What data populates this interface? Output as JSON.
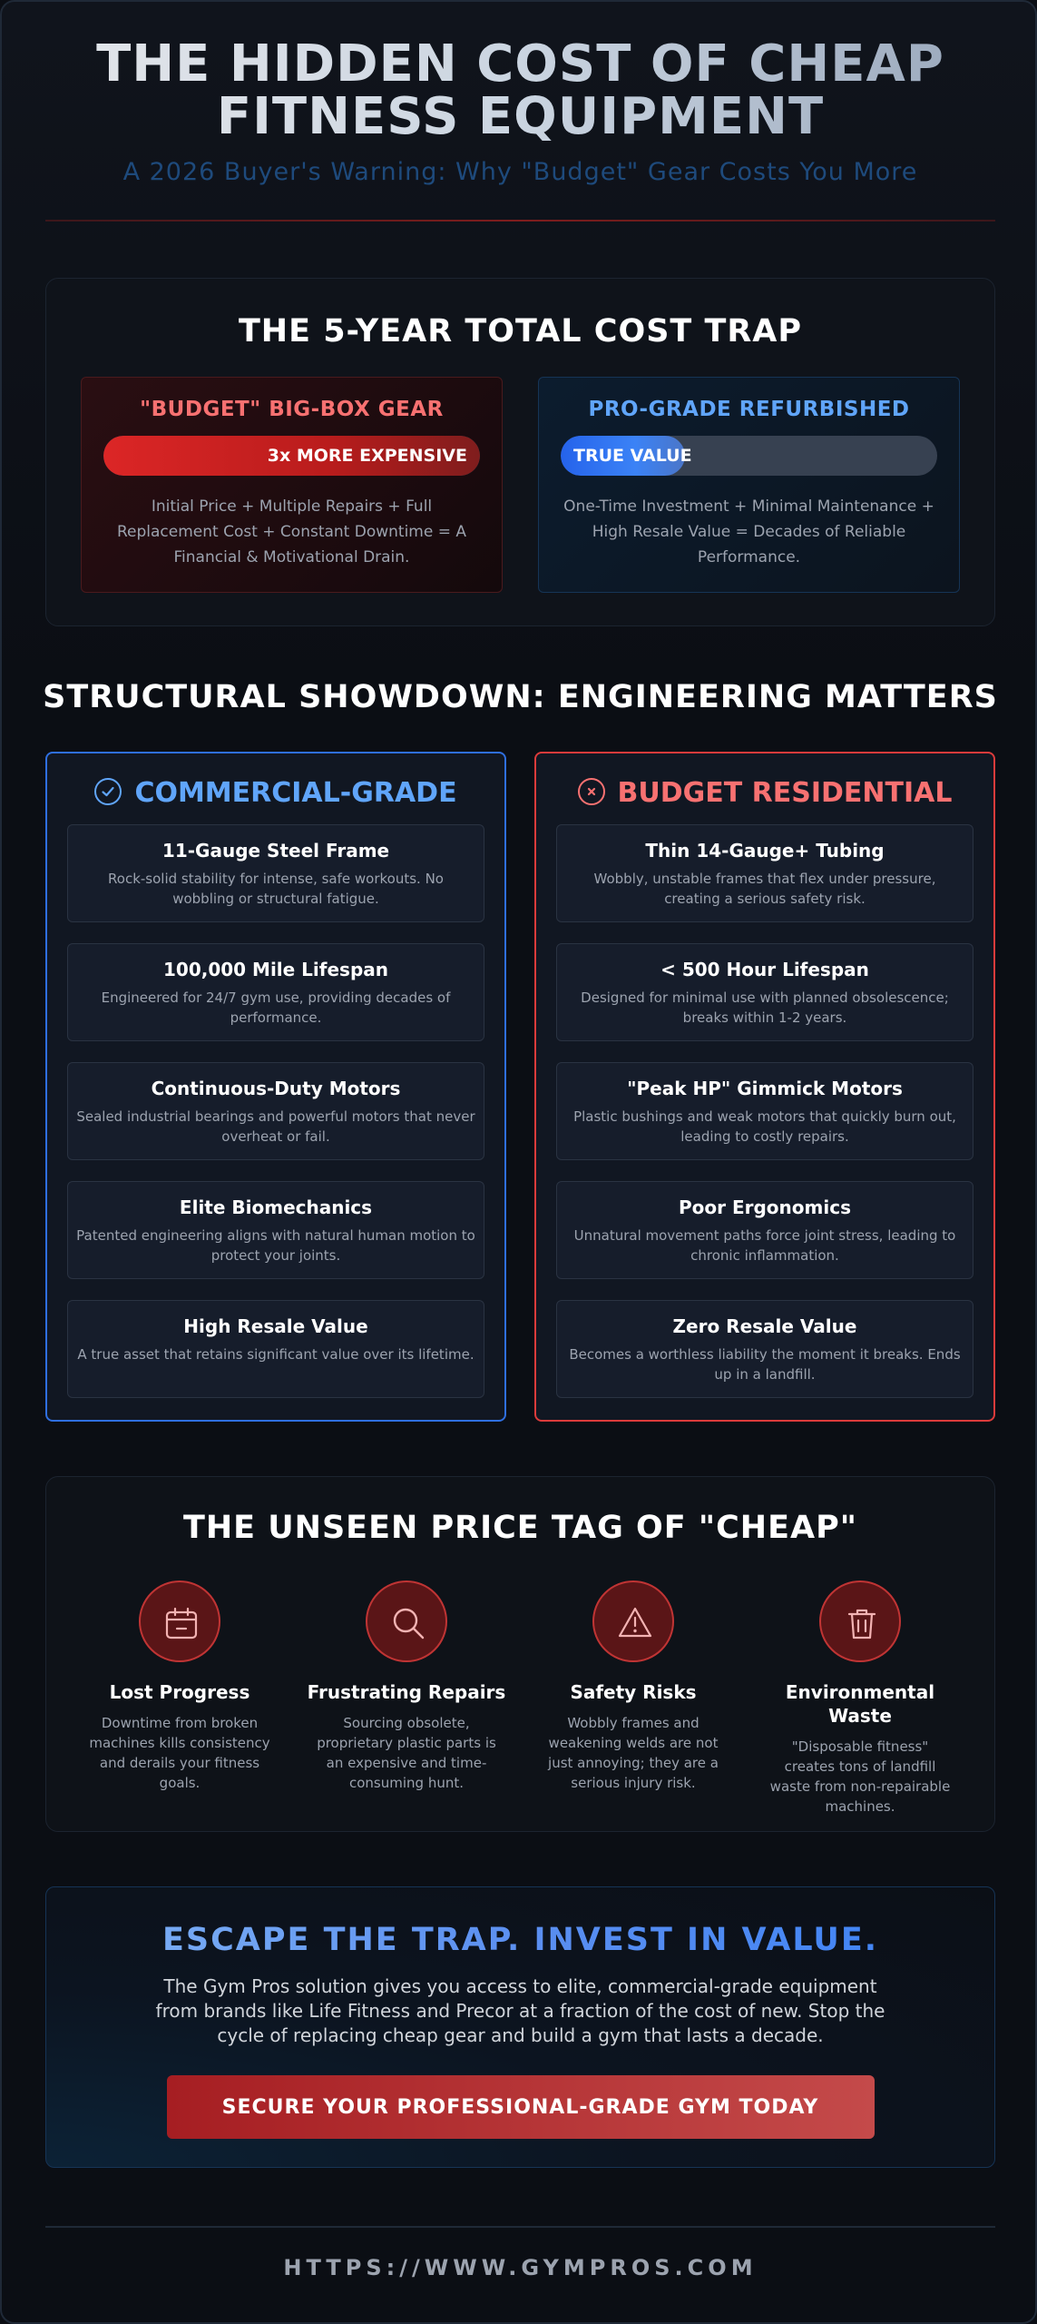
{
  "header": {
    "title_line1": "THE HIDDEN COST OF CHEAP",
    "title_line2": "FITNESS EQUIPMENT",
    "subtitle": "A 2026 Buyer's Warning: Why \"Budget\" Gear Costs You More"
  },
  "cost_trap": {
    "title": "THE 5-YEAR TOTAL COST TRAP",
    "budget": {
      "title": "\"BUDGET\" BIG-BOX GEAR",
      "bar_label": "3x MORE EXPENSIVE",
      "bar_fill_fraction": 1.0,
      "text": "Initial Price + Multiple Repairs + Full Replacement Cost + Constant Downtime = A Financial & Motivational Drain."
    },
    "pro": {
      "title": "PRO-GRADE REFURBISHED",
      "bar_label": "TRUE VALUE",
      "bar_fill_fraction": 0.33,
      "text": "One-Time Investment + Minimal Maintenance + High Resale Value = Decades of Reliable Performance."
    }
  },
  "showdown": {
    "title": "STRUCTURAL SHOWDOWN: ENGINEERING MATTERS",
    "commercial": {
      "title": "COMMERCIAL-GRADE",
      "icon": "check-circle-icon",
      "color": "#60a5fa",
      "items": [
        {
          "title": "11-Gauge Steel Frame",
          "desc": "Rock-solid stability for intense, safe workouts. No wobbling or structural fatigue."
        },
        {
          "title": "100,000 Mile Lifespan",
          "desc": "Engineered for 24/7 gym use, providing decades of performance."
        },
        {
          "title": "Continuous-Duty Motors",
          "desc": "Sealed industrial bearings and powerful motors that never overheat or fail."
        },
        {
          "title": "Elite Biomechanics",
          "desc": "Patented engineering aligns with natural human motion to protect your joints."
        },
        {
          "title": "High Resale Value",
          "desc": "A true asset that retains significant value over its lifetime."
        }
      ]
    },
    "budget": {
      "title": "BUDGET RESIDENTIAL",
      "icon": "x-circle-icon",
      "color": "#f87171",
      "items": [
        {
          "title": "Thin 14-Gauge+ Tubing",
          "desc": "Wobbly, unstable frames that flex under pressure, creating a serious safety risk."
        },
        {
          "title": "< 500 Hour Lifespan",
          "desc": "Designed for minimal use with planned obsolescence; breaks within 1-2 years."
        },
        {
          "title": "\"Peak HP\" Gimmick Motors",
          "desc": "Plastic bushings and weak motors that quickly burn out, leading to costly repairs."
        },
        {
          "title": "Poor Ergonomics",
          "desc": "Unnatural movement paths force joint stress, leading to chronic inflammation."
        },
        {
          "title": "Zero Resale Value",
          "desc": "Becomes a worthless liability the moment it breaks. Ends up in a landfill."
        }
      ]
    }
  },
  "unseen": {
    "title": "THE UNSEEN PRICE TAG OF \"CHEAP\"",
    "items": [
      {
        "icon": "calendar-icon",
        "title": "Lost Progress",
        "desc": "Downtime from broken machines kills consistency and derails your fitness goals."
      },
      {
        "icon": "search-icon",
        "title": "Frustrating Repairs",
        "desc": "Sourcing obsolete, proprietary plastic parts is an expensive and time-consuming hunt."
      },
      {
        "icon": "warning-icon",
        "title": "Safety Risks",
        "desc": "Wobbly frames and weakening welds are not just annoying; they are a serious injury risk."
      },
      {
        "icon": "trash-icon",
        "title": "Environmental Waste",
        "desc": "\"Disposable fitness\" creates tons of landfill waste from non-repairable machines."
      }
    ]
  },
  "cta": {
    "title": "ESCAPE THE TRAP. INVEST IN VALUE.",
    "text": "The Gym Pros solution gives you access to elite, commercial-grade equipment from brands like Life Fitness and Precor at a fraction of the cost of new. Stop the cycle of replacing cheap gear and build a gym that lasts a decade.",
    "button_label": "SECURE YOUR PROFESSIONAL-GRADE GYM TODAY"
  },
  "footer": {
    "url": "HTTPS://WWW.GYMPROS.COM"
  },
  "colors": {
    "accent_blue": "#60a5fa",
    "accent_red": "#f87171",
    "background": "#0b0e14"
  }
}
